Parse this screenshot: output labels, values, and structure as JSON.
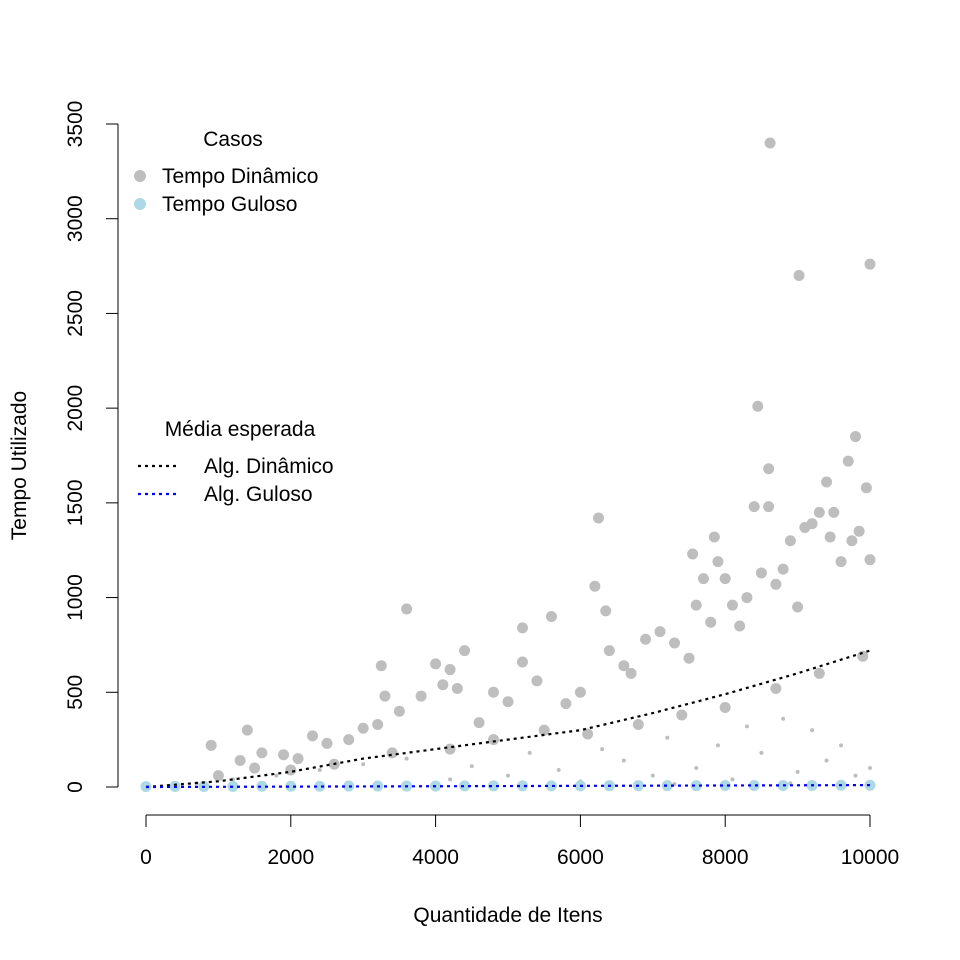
{
  "chart_data": {
    "type": "scatter",
    "xlabel": "Quantidade de Itens",
    "ylabel": "Tempo Utilizado",
    "xlim": [
      0,
      10000
    ],
    "ylim": [
      0,
      3500
    ],
    "x_ticks": [
      "0",
      "2000",
      "4000",
      "6000",
      "8000",
      "10000"
    ],
    "y_ticks": [
      "0",
      "500",
      "1000",
      "1500",
      "2000",
      "2500",
      "3000",
      "3500"
    ],
    "grid": false,
    "legend_cases": {
      "title": "Casos",
      "placement": "top-left",
      "items": [
        {
          "label": "Tempo Dinâmico",
          "color": "#bebebe",
          "marker": "circle"
        },
        {
          "label": "Tempo Guloso",
          "color": "#add8e6",
          "marker": "circle"
        }
      ]
    },
    "legend_mean": {
      "title": "Média esperada",
      "placement": "middle-left",
      "items": [
        {
          "label": "Alg. Dinâmico",
          "color": "#000000",
          "line": "dotted"
        },
        {
          "label": "Alg. Guloso",
          "color": "#0000ff",
          "line": "dotted"
        }
      ]
    },
    "series": [
      {
        "name": "Tempo Dinâmico",
        "color": "#bebebe",
        "points": [
          [
            900,
            220
          ],
          [
            1300,
            140
          ],
          [
            1400,
            300
          ],
          [
            1600,
            180
          ],
          [
            1900,
            170
          ],
          [
            2100,
            150
          ],
          [
            2300,
            270
          ],
          [
            2500,
            230
          ],
          [
            2800,
            250
          ],
          [
            3000,
            310
          ],
          [
            3200,
            330
          ],
          [
            3250,
            640
          ],
          [
            3300,
            480
          ],
          [
            3500,
            400
          ],
          [
            3600,
            940
          ],
          [
            3800,
            480
          ],
          [
            4000,
            650
          ],
          [
            4100,
            540
          ],
          [
            4200,
            620
          ],
          [
            4300,
            520
          ],
          [
            4400,
            720
          ],
          [
            4600,
            340
          ],
          [
            4800,
            500
          ],
          [
            5000,
            450
          ],
          [
            5200,
            840
          ],
          [
            5200,
            660
          ],
          [
            5400,
            560
          ],
          [
            5600,
            900
          ],
          [
            5800,
            440
          ],
          [
            6000,
            500
          ],
          [
            6200,
            1060
          ],
          [
            6250,
            1420
          ],
          [
            6350,
            930
          ],
          [
            6400,
            720
          ],
          [
            6600,
            640
          ],
          [
            6700,
            600
          ],
          [
            6900,
            780
          ],
          [
            7100,
            820
          ],
          [
            7300,
            760
          ],
          [
            7500,
            680
          ],
          [
            7550,
            1230
          ],
          [
            7600,
            960
          ],
          [
            7700,
            1100
          ],
          [
            7800,
            870
          ],
          [
            7850,
            1320
          ],
          [
            7900,
            1190
          ],
          [
            8000,
            1100
          ],
          [
            8100,
            960
          ],
          [
            8200,
            850
          ],
          [
            8300,
            1000
          ],
          [
            8400,
            1480
          ],
          [
            8450,
            2010
          ],
          [
            8500,
            1130
          ],
          [
            8600,
            1680
          ],
          [
            8600,
            1480
          ],
          [
            8620,
            3400
          ],
          [
            8700,
            1070
          ],
          [
            8800,
            1150
          ],
          [
            8900,
            1300
          ],
          [
            9000,
            950
          ],
          [
            9020,
            2700
          ],
          [
            9100,
            1370
          ],
          [
            9200,
            1390
          ],
          [
            9300,
            1450
          ],
          [
            9400,
            1610
          ],
          [
            9450,
            1320
          ],
          [
            9500,
            1450
          ],
          [
            9600,
            1190
          ],
          [
            9700,
            1720
          ],
          [
            9750,
            1300
          ],
          [
            9800,
            1850
          ],
          [
            9850,
            1350
          ],
          [
            9950,
            1580
          ],
          [
            10000,
            2760
          ],
          [
            10000,
            1200
          ],
          [
            1000,
            60
          ],
          [
            1500,
            100
          ],
          [
            2000,
            90
          ],
          [
            2600,
            120
          ],
          [
            3400,
            180
          ],
          [
            4200,
            200
          ],
          [
            4800,
            250
          ],
          [
            5500,
            300
          ],
          [
            6100,
            280
          ],
          [
            6800,
            330
          ],
          [
            7400,
            380
          ],
          [
            8000,
            420
          ],
          [
            8700,
            520
          ],
          [
            9300,
            600
          ],
          [
            9900,
            690
          ]
        ],
        "small_points": [
          [
            700,
            20
          ],
          [
            1200,
            40
          ],
          [
            1800,
            60
          ],
          [
            2400,
            90
          ],
          [
            3000,
            120
          ],
          [
            3600,
            150
          ],
          [
            4200,
            40
          ],
          [
            4500,
            110
          ],
          [
            5000,
            60
          ],
          [
            5300,
            180
          ],
          [
            5700,
            90
          ],
          [
            6000,
            30
          ],
          [
            6300,
            200
          ],
          [
            6600,
            140
          ],
          [
            7000,
            60
          ],
          [
            7200,
            260
          ],
          [
            7600,
            100
          ],
          [
            7900,
            220
          ],
          [
            8100,
            40
          ],
          [
            8300,
            320
          ],
          [
            8500,
            180
          ],
          [
            8800,
            360
          ],
          [
            9000,
            80
          ],
          [
            9200,
            300
          ],
          [
            9400,
            140
          ],
          [
            9600,
            220
          ],
          [
            9800,
            60
          ],
          [
            10000,
            100
          ],
          [
            8900,
            20
          ],
          [
            7300,
            15
          ]
        ]
      },
      {
        "name": "Tempo Guloso",
        "color": "#add8e6",
        "points": [
          [
            0,
            2
          ],
          [
            400,
            3
          ],
          [
            800,
            3
          ],
          [
            1200,
            3
          ],
          [
            1600,
            4
          ],
          [
            2000,
            4
          ],
          [
            2400,
            4
          ],
          [
            2800,
            5
          ],
          [
            3200,
            5
          ],
          [
            3600,
            5
          ],
          [
            4000,
            5
          ],
          [
            4400,
            6
          ],
          [
            4800,
            6
          ],
          [
            5200,
            6
          ],
          [
            5600,
            6
          ],
          [
            6000,
            6
          ],
          [
            6400,
            7
          ],
          [
            6800,
            7
          ],
          [
            7200,
            7
          ],
          [
            7600,
            7
          ],
          [
            8000,
            8
          ],
          [
            8400,
            8
          ],
          [
            8800,
            8
          ],
          [
            9200,
            8
          ],
          [
            9600,
            9
          ],
          [
            10000,
            9
          ]
        ]
      }
    ],
    "mean_lines": [
      {
        "name": "Alg. Dinâmico",
        "color": "#000000",
        "x": [
          0,
          1000,
          2000,
          3000,
          4000,
          5000,
          6000,
          7000,
          8000,
          9000,
          10000
        ],
        "y": [
          0,
          30,
          80,
          150,
          200,
          250,
          300,
          390,
          490,
          600,
          720
        ]
      },
      {
        "name": "Alg. Guloso",
        "color": "#0000ff",
        "x": [
          0,
          10000
        ],
        "y": [
          0,
          10
        ]
      }
    ]
  }
}
